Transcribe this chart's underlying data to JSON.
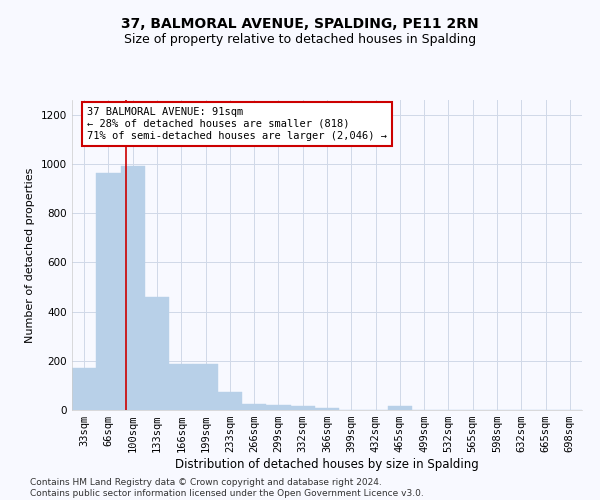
{
  "title": "37, BALMORAL AVENUE, SPALDING, PE11 2RN",
  "subtitle": "Size of property relative to detached houses in Spalding",
  "xlabel": "Distribution of detached houses by size in Spalding",
  "ylabel": "Number of detached properties",
  "bar_categories": [
    "33sqm",
    "66sqm",
    "100sqm",
    "133sqm",
    "166sqm",
    "199sqm",
    "233sqm",
    "266sqm",
    "299sqm",
    "332sqm",
    "366sqm",
    "399sqm",
    "432sqm",
    "465sqm",
    "499sqm",
    "532sqm",
    "565sqm",
    "598sqm",
    "632sqm",
    "665sqm",
    "698sqm"
  ],
  "bar_values": [
    170,
    965,
    990,
    460,
    185,
    185,
    75,
    25,
    20,
    15,
    10,
    0,
    0,
    15,
    0,
    0,
    0,
    0,
    0,
    0,
    0
  ],
  "bar_color": "#b8d0e8",
  "bar_edge_color": "#b8d0e8",
  "property_line_x": 1.72,
  "property_line_color": "#cc0000",
  "annotation_text": "37 BALMORAL AVENUE: 91sqm\n← 28% of detached houses are smaller (818)\n71% of semi-detached houses are larger (2,046) →",
  "annotation_box_color": "#ffffff",
  "annotation_box_edge": "#cc0000",
  "ylim": [
    0,
    1260
  ],
  "yticks": [
    0,
    200,
    400,
    600,
    800,
    1000,
    1200
  ],
  "grid_color": "#d0d8e8",
  "background_color": "#f8f9ff",
  "footer": "Contains HM Land Registry data © Crown copyright and database right 2024.\nContains public sector information licensed under the Open Government Licence v3.0.",
  "title_fontsize": 10,
  "subtitle_fontsize": 9,
  "xlabel_fontsize": 8.5,
  "ylabel_fontsize": 8,
  "tick_fontsize": 7.5,
  "annotation_fontsize": 7.5,
  "footer_fontsize": 6.5
}
